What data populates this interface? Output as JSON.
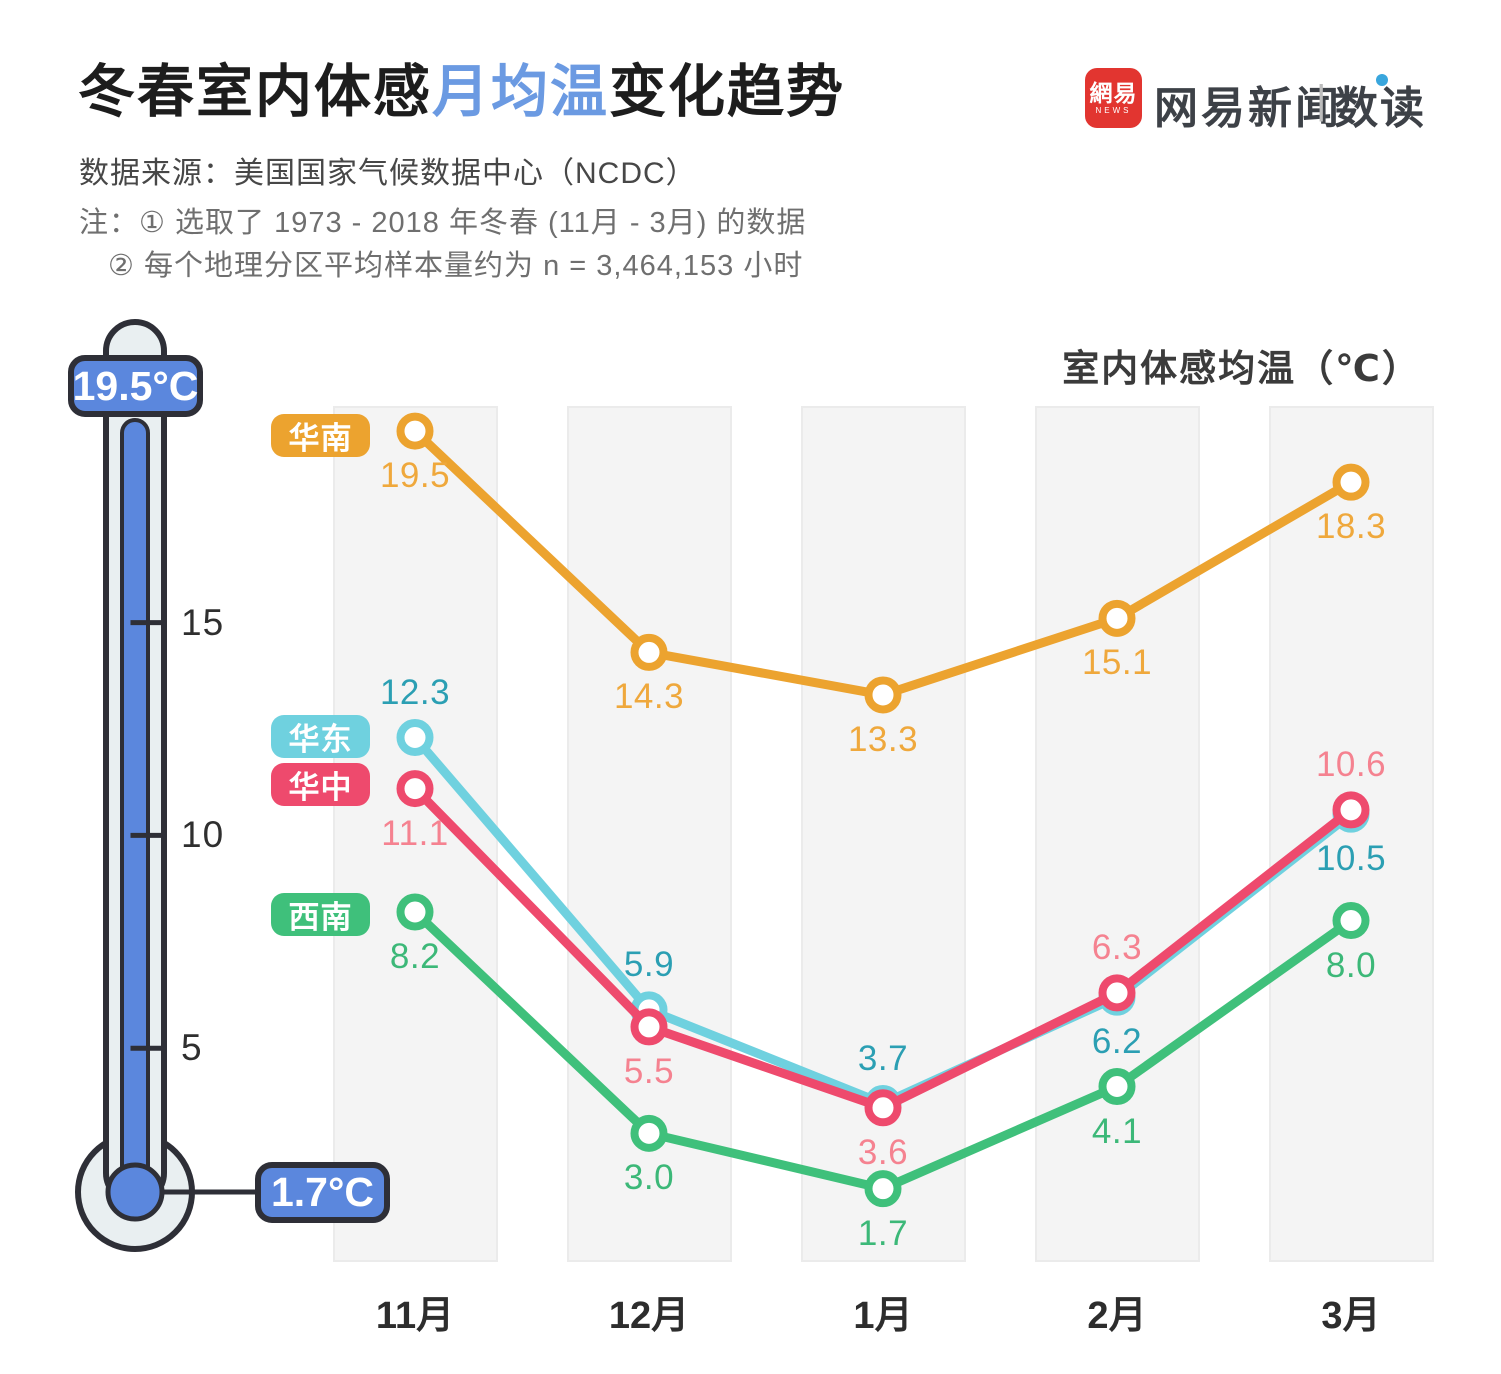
{
  "header": {
    "title_pre": "冬春室内体感",
    "title_highlight": "月均温",
    "title_post": "变化趋势",
    "source": "数据来源：美国国家气候数据中心（NCDC）",
    "note1": "注：① 选取了 1973 - 2018 年冬春 (11月 - 3月) 的数据",
    "note2": "② 每个地理分区平均样本量约为 n = 3,464,153 小时",
    "logo": {
      "mark_main": "網易",
      "mark_sub": "NEWS",
      "brand": "网易新闻",
      "divider": "|",
      "product": "数读",
      "red": "#e23530",
      "dark": "#3d4147",
      "dot_blue": "#39a6dd"
    }
  },
  "thermometer": {
    "max_badge": "19.5°C",
    "min_badge": "1.7°C",
    "ticks": [
      {
        "label": "15",
        "value": 15
      },
      {
        "label": "10",
        "value": 10
      },
      {
        "label": "5",
        "value": 5
      }
    ],
    "blue": "#5b87dd",
    "outline": "#2e2f37",
    "glass": "#e9eff1"
  },
  "chart_data": {
    "type": "line",
    "title": "室内体感均温（℃）",
    "categories": [
      "11月",
      "12月",
      "1月",
      "2月",
      "3月"
    ],
    "ylim": [
      0,
      20.1
    ],
    "grid": "column-bands",
    "legend_position": "badges-left-of-first-point",
    "series": [
      {
        "key": "south-china",
        "name": "华南",
        "values": [
          19.5,
          14.3,
          13.3,
          15.1,
          18.3
        ],
        "labels": [
          "19.5",
          "14.3",
          "13.3",
          "15.1",
          "18.3"
        ],
        "label_side": [
          "below",
          "below",
          "below",
          "below",
          "below"
        ],
        "color": "#eca32f",
        "value_color": "#efa83c"
      },
      {
        "key": "east-china",
        "name": "华东",
        "values": [
          12.3,
          5.9,
          3.7,
          6.2,
          10.5
        ],
        "labels": [
          "12.3",
          "5.9",
          "3.7",
          "6.2",
          "10.5"
        ],
        "label_side": [
          "above",
          "above",
          "above",
          "below",
          "below"
        ],
        "color": "#6fd1df",
        "value_color": "#2b9fb3"
      },
      {
        "key": "central-china",
        "name": "华中",
        "values": [
          11.1,
          5.5,
          3.6,
          6.3,
          10.6
        ],
        "labels": [
          "11.1",
          "5.5",
          "3.6",
          "6.3",
          "10.6"
        ],
        "label_side": [
          "below",
          "below",
          "below",
          "above",
          "above"
        ],
        "color": "#ee4a6d",
        "value_color": "#f58290"
      },
      {
        "key": "southwest-china",
        "name": "西南",
        "values": [
          8.2,
          3.0,
          1.7,
          4.1,
          8.0
        ],
        "labels": [
          "8.2",
          "3.0",
          "1.7",
          "4.1",
          "8.0"
        ],
        "label_side": [
          "below",
          "below",
          "below",
          "below",
          "below"
        ],
        "color": "#3fc07b",
        "value_color": "#3cb878"
      }
    ]
  }
}
